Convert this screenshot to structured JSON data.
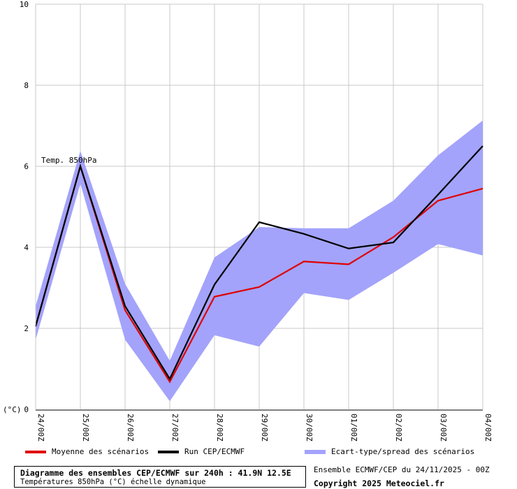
{
  "chart_data": {
    "type": "line",
    "x": [
      "24/00Z",
      "25/00Z",
      "26/00Z",
      "27/00Z",
      "28/00Z",
      "29/00Z",
      "30/00Z",
      "01/00Z",
      "02/00Z",
      "03/00Z",
      "04/00Z"
    ],
    "ylim": [
      0,
      10
    ],
    "yticks": [
      0,
      2,
      4,
      6,
      8,
      10
    ],
    "ylabel": "(°C)",
    "annotation": "Temp. 850hPa",
    "grid": true,
    "series": [
      {
        "name": "Moyenne des scénarios",
        "color": "#e00000",
        "values": [
          2.05,
          6.0,
          2.45,
          0.68,
          2.78,
          3.02,
          3.65,
          3.58,
          4.25,
          5.15,
          5.45
        ]
      },
      {
        "name": "Run CEP/ECMWF",
        "color": "#000000",
        "values": [
          2.05,
          6.0,
          2.55,
          0.75,
          3.08,
          4.62,
          4.33,
          3.97,
          4.12,
          5.3,
          6.5
        ]
      }
    ],
    "spread": {
      "name": "Ecart-type/spread des scénarios",
      "color": "#a3a3fb",
      "upper": [
        2.55,
        6.38,
        3.1,
        1.2,
        3.75,
        4.5,
        4.47,
        4.47,
        5.15,
        6.27,
        7.13
      ],
      "lower": [
        1.72,
        5.57,
        1.72,
        0.2,
        1.83,
        1.55,
        2.87,
        2.7,
        3.37,
        4.08,
        3.8
      ]
    }
  },
  "legend": {
    "mean_label": "Moyenne des scénarios",
    "run_label": "Run CEP/ECMWF",
    "spread_label": "Ecart-type/spread des scénarios"
  },
  "footer": {
    "title": "Diagramme des ensembles CEP/ECMWF sur 240h : 41.9N 12.5E",
    "subtitle": "Températures 850hPa (°C) échelle dynamique",
    "ensemble": "Ensemble ECMWF/CEP du 24/11/2025 - 00Z",
    "copyright": "Copyright 2025 Meteociel.fr"
  }
}
